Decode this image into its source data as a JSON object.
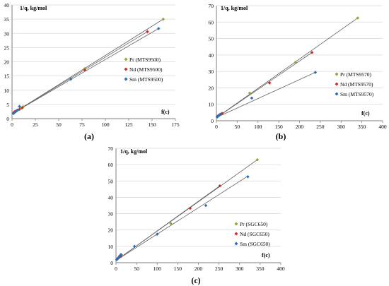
{
  "colors": {
    "pr": "#8fa834",
    "nd": "#d02b2b",
    "sm": "#2a6fb4",
    "axis": "#7f7f7f",
    "grid": "#d9d9d9",
    "line": "#606060"
  },
  "chart_data": [
    {
      "type": "scatter",
      "panel_label": "(a)",
      "ylabel": "1/q, kg/mol",
      "xlabel": "f(c)",
      "xlim": [
        0,
        175
      ],
      "ylim": [
        0,
        40
      ],
      "xticks": [
        "0",
        "25",
        "50",
        "75",
        "100",
        "125",
        "150",
        "175"
      ],
      "yticks": [
        "0",
        "5",
        "10",
        "15",
        "20",
        "25",
        "30",
        "35",
        "40"
      ],
      "grid": "horizontal",
      "legend_position": "right",
      "series": [
        {
          "name": "Pr (MTS9500)",
          "color": "pr",
          "fit": [
            [
              1.5,
              2.0
            ],
            [
              162,
              35.0
            ]
          ],
          "points": [
            [
              2,
              2.1
            ],
            [
              3,
              2.4
            ],
            [
              4,
              2.6
            ],
            [
              6,
              3.0
            ],
            [
              10,
              3.7
            ],
            [
              12,
              4.2
            ],
            [
              78,
              17.6
            ],
            [
              162,
              35.0
            ]
          ]
        },
        {
          "name": "Nd (MTS9500)",
          "color": "nd",
          "fit": [
            [
              1.5,
              2.0
            ],
            [
              145,
              30.6
            ]
          ],
          "points": [
            [
              2,
              2.2
            ],
            [
              3,
              2.5
            ],
            [
              5,
              2.8
            ],
            [
              8,
              3.3
            ],
            [
              11,
              3.8
            ],
            [
              78,
              17.1
            ],
            [
              145,
              30.6
            ]
          ]
        },
        {
          "name": "Sm (MTS9500)",
          "color": "sm",
          "fit": [
            [
              1.5,
              2.0
            ],
            [
              157,
              31.7
            ]
          ],
          "points": [
            [
              1.5,
              1.8
            ],
            [
              2.5,
              2.1
            ],
            [
              4,
              2.5
            ],
            [
              6,
              3.0
            ],
            [
              8,
              4.3
            ],
            [
              63,
              13.9
            ],
            [
              157,
              31.7
            ]
          ]
        }
      ]
    },
    {
      "type": "scatter",
      "panel_label": "(b)",
      "ylabel": "1/q, kg/mol",
      "xlabel": "f(c)",
      "xlim": [
        0,
        400
      ],
      "ylim": [
        0,
        70
      ],
      "xticks": [
        "0",
        "50",
        "100",
        "150",
        "200",
        "250",
        "300",
        "350",
        "400"
      ],
      "yticks": [
        "0",
        "10",
        "20",
        "30",
        "40",
        "50",
        "60",
        "70"
      ],
      "grid": "horizontal",
      "legend_position": "right",
      "series": [
        {
          "name": "Pr (MTS9570)",
          "color": "pr",
          "fit": [
            [
              2,
              2.2
            ],
            [
              340,
              62.5
            ]
          ],
          "points": [
            [
              2,
              2.4
            ],
            [
              5,
              3.0
            ],
            [
              8,
              3.6
            ],
            [
              12,
              4.2
            ],
            [
              80,
              16.8
            ],
            [
              190,
              35.5
            ],
            [
              340,
              62.5
            ]
          ]
        },
        {
          "name": "Nd (MTS9570)",
          "color": "nd",
          "fit": [
            [
              2,
              2.2
            ],
            [
              230,
              41.5
            ]
          ],
          "points": [
            [
              2,
              2.6
            ],
            [
              5,
              3.2
            ],
            [
              9,
              3.9
            ],
            [
              14,
              4.5
            ],
            [
              128,
              23.0
            ],
            [
              230,
              41.5
            ]
          ]
        },
        {
          "name": "Sm (MTS9570)",
          "color": "sm",
          "fit": [
            [
              2,
              2.2
            ],
            [
              238,
              29.4
            ]
          ],
          "points": [
            [
              2,
              2.3
            ],
            [
              4,
              2.8
            ],
            [
              7,
              3.4
            ],
            [
              10,
              3.9
            ],
            [
              85,
              13.8
            ],
            [
              238,
              29.4
            ]
          ]
        }
      ]
    },
    {
      "type": "scatter",
      "panel_label": "(c)",
      "ylabel": "1/q, kg/mol",
      "xlabel": "f(c)",
      "xlim": [
        0,
        400
      ],
      "ylim": [
        0,
        70
      ],
      "xticks": [
        "0",
        "50",
        "100",
        "150",
        "200",
        "250",
        "300",
        "350",
        "400"
      ],
      "yticks": [
        "0",
        "10",
        "20",
        "30",
        "40",
        "50",
        "60",
        "70"
      ],
      "grid": "horizontal",
      "legend_position": "right",
      "series": [
        {
          "name": "Pr (SGC650)",
          "color": "pr",
          "fit": [
            [
              1,
              1.5
            ],
            [
              343,
              63.0
            ]
          ],
          "points": [
            [
              2,
              2.0
            ],
            [
              5,
              2.8
            ],
            [
              10,
              3.6
            ],
            [
              15,
              4.4
            ],
            [
              133,
              24.0
            ],
            [
              343,
              63.0
            ]
          ]
        },
        {
          "name": "Nd (SGC650)",
          "color": "nd",
          "fit": [
            [
              1,
              1.5
            ],
            [
              252,
              47.0
            ]
          ],
          "points": [
            [
              3,
              2.3
            ],
            [
              7,
              3.1
            ],
            [
              12,
              3.9
            ],
            [
              180,
              33.3
            ],
            [
              252,
              47.0
            ]
          ]
        },
        {
          "name": "Sm (SGC650)",
          "color": "sm",
          "fit": [
            [
              1,
              1.5
            ],
            [
              320,
              53.0
            ]
          ],
          "points": [
            [
              2,
              1.9
            ],
            [
              4,
              2.4
            ],
            [
              6,
              3.1
            ],
            [
              9,
              4.1
            ],
            [
              12,
              5.0
            ],
            [
              45,
              10.0
            ],
            [
              100,
              17.4
            ],
            [
              218,
              35.0
            ],
            [
              320,
              52.6
            ]
          ]
        }
      ]
    }
  ]
}
